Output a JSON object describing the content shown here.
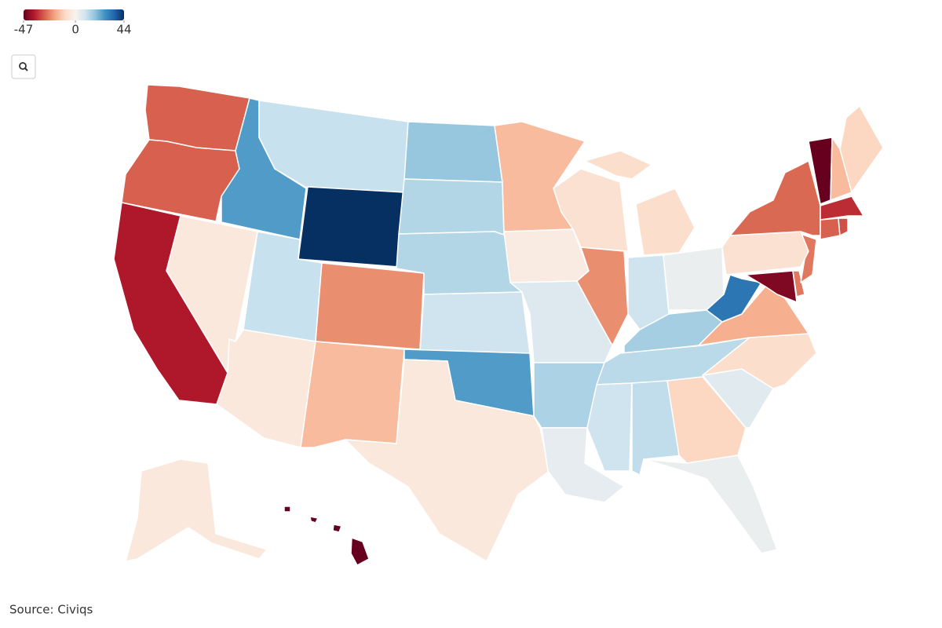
{
  "chart_data": {
    "type": "choropleth",
    "values": [
      -28,
      -28,
      -38,
      -4,
      25,
      10,
      44,
      10,
      -4,
      -22,
      -15,
      17,
      13,
      13,
      9,
      25,
      -4,
      -15,
      -3,
      6,
      14,
      4,
      -7,
      -22,
      -8,
      9,
      3,
      15,
      12,
      9,
      11,
      -10,
      3,
      5,
      -8,
      -17,
      32,
      -44,
      -25,
      -25,
      -7,
      -27,
      -47,
      -15,
      -10,
      -35,
      -28,
      -30,
      -4,
      -47
    ],
    "clim": [
      -47,
      44
    ],
    "cmid": 0,
    "ticks": [
      -47,
      0,
      44
    ],
    "colors": [
      "#67001f",
      "#b2182b",
      "#d6604d",
      "#f4a582",
      "#fddbc7",
      "#f7f2ee",
      "#d1e5f0",
      "#92c5de",
      "#4393c3",
      "#2166ac",
      "#053061"
    ],
    "source": "Source: Civiqs"
  }
}
